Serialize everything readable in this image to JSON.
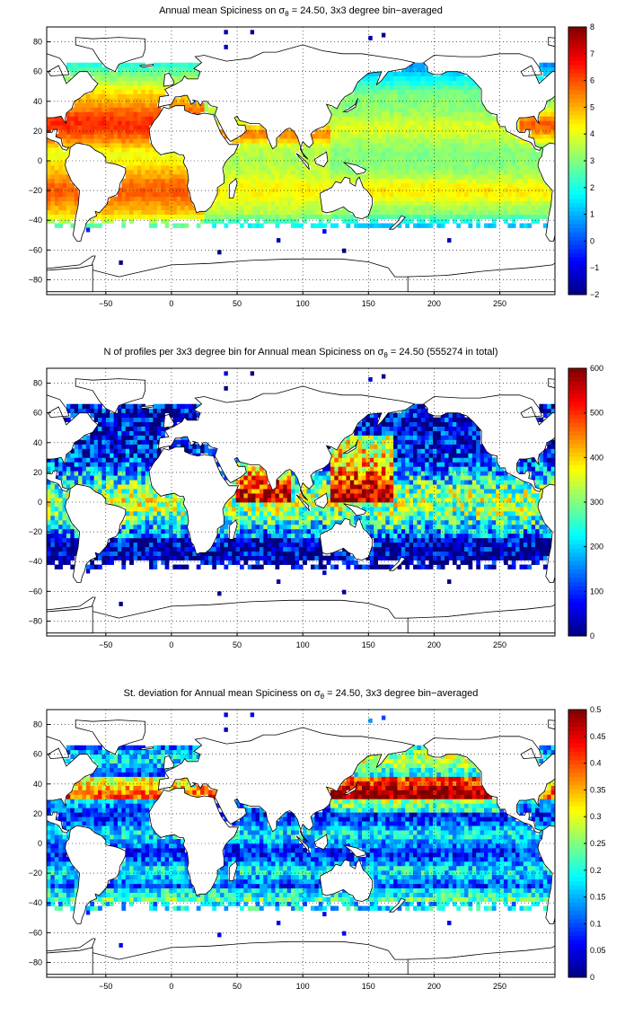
{
  "chart_data": [
    {
      "type": "heatmap",
      "title_prefix": "Annual mean Spiciness on ",
      "title_symbol": "σ",
      "title_sub": "θ",
      "title_suffix": " = 24.50, 3x3 degree bin−averaged",
      "xlim": [
        -95,
        292
      ],
      "ylim": [
        -90,
        90
      ],
      "xticks": [
        -50,
        0,
        50,
        100,
        150,
        200,
        250
      ],
      "yticks": [
        -80,
        -60,
        -40,
        -20,
        0,
        20,
        40,
        60,
        80
      ],
      "grid": true,
      "colorbar": {
        "min": -2,
        "max": 8,
        "ticks": [
          -2,
          -1,
          0,
          1,
          2,
          3,
          4,
          5,
          6,
          7,
          8
        ]
      },
      "field": "spice"
    },
    {
      "type": "heatmap",
      "title_prefix": "N of profiles per 3x3 degree bin for Annual mean Spiciness on ",
      "title_symbol": "σ",
      "title_sub": "θ",
      "title_suffix": " = 24.50 (555274 in total)",
      "total_profiles": 555274,
      "xlim": [
        -95,
        292
      ],
      "ylim": [
        -90,
        90
      ],
      "xticks": [
        -50,
        0,
        50,
        100,
        150,
        200,
        250
      ],
      "yticks": [
        -80,
        -60,
        -40,
        -20,
        0,
        20,
        40,
        60,
        80
      ],
      "grid": true,
      "colorbar": {
        "min": 0,
        "max": 600,
        "ticks": [
          0,
          100,
          200,
          300,
          400,
          500,
          600
        ]
      },
      "field": "count"
    },
    {
      "type": "heatmap",
      "title_prefix": "St. deviation for Annual mean Spiciness on ",
      "title_symbol": "σ",
      "title_sub": "θ",
      "title_suffix": " = 24.50, 3x3 degree bin−averaged",
      "xlim": [
        -95,
        292
      ],
      "ylim": [
        -90,
        90
      ],
      "xticks": [
        -50,
        0,
        50,
        100,
        150,
        200,
        250
      ],
      "yticks": [
        -80,
        -60,
        -40,
        -20,
        0,
        20,
        40,
        60,
        80
      ],
      "grid": true,
      "colorbar": {
        "min": 0,
        "max": 0.5,
        "ticks": [
          0,
          0.05,
          0.1,
          0.15,
          0.2,
          0.25,
          0.3,
          0.35,
          0.4,
          0.45,
          0.5
        ]
      },
      "field": "std"
    }
  ],
  "colormap": "jet",
  "bin_size_deg": 3
}
